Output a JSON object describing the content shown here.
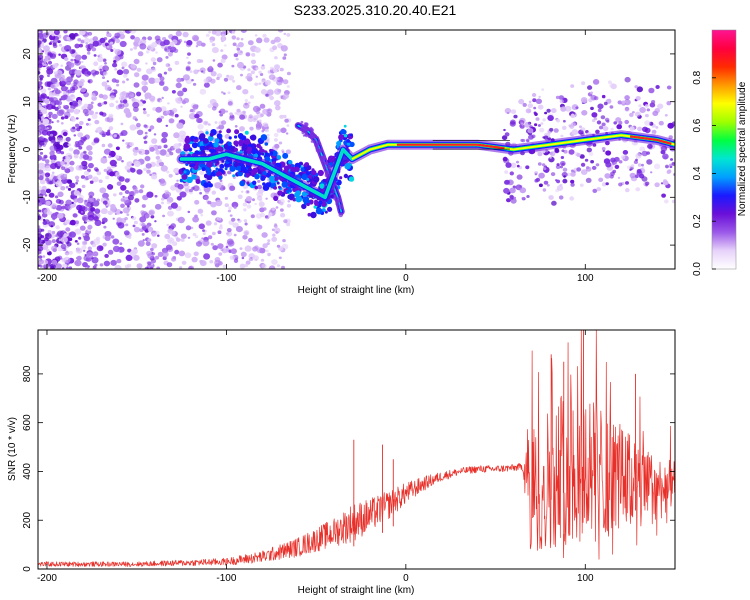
{
  "title": "S233.2025.310.20.40.E21",
  "colors": {
    "snr_line": "#e8302a",
    "axis": "#000000",
    "ridge": "#ff1f1f",
    "speckle": "#6a1fd6"
  },
  "colorbar": {
    "label": "Normalized spectral amplitude",
    "ticks": [
      "0.0",
      "0.2",
      "0.4",
      "0.6",
      "0.8"
    ],
    "tick_values": [
      0.0,
      0.2,
      0.4,
      0.6,
      0.8
    ],
    "range": [
      0,
      1
    ],
    "colormap": [
      "#ffffff",
      "#e7d2fa",
      "#9b59e8",
      "#6a10d8",
      "#1a1aff",
      "#00a0ff",
      "#00e6d2",
      "#00ff40",
      "#a0ff00",
      "#ffff00",
      "#ff9900",
      "#ff2a00",
      "#ff0040",
      "#ff1493"
    ]
  },
  "chart_data": [
    {
      "type": "heatmap",
      "title": "S233.2025.310.20.40.E21",
      "xlabel": "Height of straight line (km)",
      "ylabel": "Frequency (Hz)",
      "xlim": [
        -205,
        150
      ],
      "ylim": [
        -25,
        25
      ],
      "xticks": [
        -200,
        -100,
        0,
        100
      ],
      "xtick_labels": [
        "-200",
        "-100",
        "0",
        "100"
      ],
      "yticks": [
        -20,
        -10,
        0,
        10,
        20
      ],
      "ytick_labels": [
        "-20",
        "-10",
        "0",
        "10",
        "20"
      ],
      "ridge": {
        "x": [
          -125,
          -110,
          -100,
          -90,
          -80,
          -70,
          -60,
          -50,
          -45,
          -40,
          -35,
          -30,
          -20,
          -10,
          0,
          10,
          20,
          40,
          60,
          80,
          100,
          120,
          140,
          150
        ],
        "y": [
          -2,
          -2,
          -1,
          -2,
          -3,
          -5,
          -7,
          -9,
          -10,
          -5,
          0,
          -2,
          0,
          1,
          1,
          1,
          1,
          1,
          0,
          1,
          2,
          3,
          2,
          1
        ]
      },
      "hook": {
        "x": [
          -60,
          -55,
          -50,
          -47,
          -44,
          -41,
          -38,
          -36
        ],
        "y": [
          5,
          4,
          2,
          -1,
          -4,
          -7,
          -10,
          -13
        ]
      }
    },
    {
      "type": "line",
      "xlabel": "Height of straight line (km)",
      "ylabel": "SNR (10 * v/v)",
      "xlim": [
        -205,
        150
      ],
      "ylim": [
        0,
        980
      ],
      "xticks": [
        -200,
        -100,
        0,
        100
      ],
      "xtick_labels": [
        "-200",
        "-100",
        "0",
        "100"
      ],
      "yticks": [
        0,
        200,
        400,
        600,
        800
      ],
      "ytick_labels": [
        "0",
        "200",
        "400",
        "600",
        "800"
      ],
      "envelope": {
        "x": [
          -205,
          -150,
          -100,
          -80,
          -60,
          -40,
          -30,
          -20,
          -10,
          0,
          10,
          20,
          30,
          40,
          50,
          60,
          65,
          68,
          70,
          80,
          90,
          100,
          110,
          120,
          130,
          140,
          150
        ],
        "y": [
          20,
          20,
          30,
          50,
          90,
          150,
          190,
          220,
          260,
          310,
          350,
          380,
          400,
          410,
          410,
          415,
          420,
          400,
          300,
          380,
          420,
          420,
          400,
          380,
          330,
          330,
          350
        ]
      },
      "noise": {
        "x": [
          -205,
          -150,
          -100,
          -80,
          -60,
          -40,
          -30,
          -20,
          -10,
          0,
          10,
          20,
          30,
          40,
          50,
          60,
          65,
          68,
          70,
          80,
          90,
          100,
          110,
          120,
          130,
          140,
          150
        ],
        "amp": [
          10,
          10,
          15,
          25,
          40,
          60,
          80,
          70,
          60,
          45,
          30,
          20,
          15,
          15,
          15,
          15,
          15,
          220,
          250,
          300,
          320,
          320,
          260,
          220,
          180,
          140,
          90
        ]
      },
      "spikes": [
        {
          "x": -29,
          "y": 530
        },
        {
          "x": -13,
          "y": 510
        },
        {
          "x": -7,
          "y": 450
        },
        {
          "x": 99,
          "y": 990
        },
        {
          "x": 81,
          "y": 880
        },
        {
          "x": 88,
          "y": 850
        },
        {
          "x": 128,
          "y": 800
        }
      ]
    }
  ]
}
